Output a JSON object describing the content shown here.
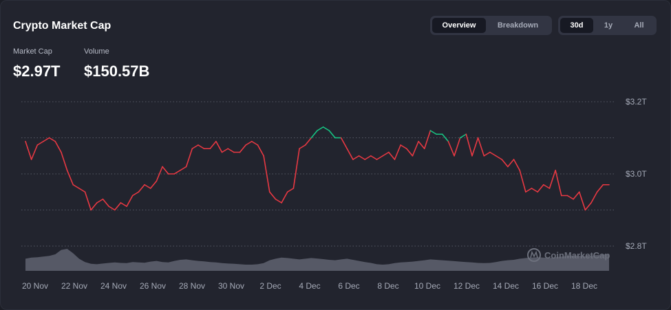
{
  "header": {
    "title": "Crypto Market Cap",
    "view_tabs": [
      {
        "label": "Overview",
        "active": true
      },
      {
        "label": "Breakdown",
        "active": false
      }
    ],
    "range_tabs": [
      {
        "label": "30d",
        "active": true
      },
      {
        "label": "1y",
        "active": false
      },
      {
        "label": "All",
        "active": false
      }
    ]
  },
  "metrics": {
    "market_cap_label": "Market Cap",
    "market_cap_value": "$2.97T",
    "volume_label": "Volume",
    "volume_value": "$150.57B"
  },
  "watermark": {
    "text": "CoinMarketCap",
    "icon": "coinmarketcap-logo-icon"
  },
  "colors": {
    "up": "#16c784",
    "down": "#ea3943",
    "volume": "#5f6370",
    "grid": "#555a66",
    "background": "#22242e"
  },
  "chart_data": {
    "type": "line",
    "x_tick_labels": [
      "20 Nov",
      "22 Nov",
      "24 Nov",
      "26 Nov",
      "28 Nov",
      "30 Nov",
      "2 Dec",
      "4 Dec",
      "6 Dec",
      "8 Dec",
      "10 Dec",
      "12 Dec",
      "14 Dec",
      "16 Dec",
      "18 Dec"
    ],
    "y_tick_labels": [
      "$3.2T",
      "$3.0T",
      "$2.8T"
    ],
    "ylim": [
      2.8,
      3.2
    ],
    "grid": "horizontal dotted",
    "baseline": 3.07,
    "series": [
      {
        "x": [
          "2024-11-19",
          "2024-11-20",
          "2024-11-20",
          "2024-11-20",
          "2024-11-20",
          "2024-11-20",
          "2024-11-20",
          "2024-11-21",
          "2024-11-21",
          "2024-11-21",
          "2024-11-21",
          "2024-11-22",
          "2024-11-22",
          "2024-11-22",
          "2024-11-22",
          "2024-11-22",
          "2024-11-23",
          "2024-11-23",
          "2024-11-23",
          "2024-11-24",
          "2024-11-24",
          "2024-11-24",
          "2024-11-25",
          "2024-11-25",
          "2024-11-25",
          "2024-11-26",
          "2024-11-26",
          "2024-11-26",
          "2024-11-27",
          "2024-11-27",
          "2024-11-27",
          "2024-11-28",
          "2024-11-28",
          "2024-11-28",
          "2024-11-29",
          "2024-11-29",
          "2024-11-29",
          "2024-11-30",
          "2024-11-30",
          "2024-11-30",
          "2024-12-01",
          "2024-12-01",
          "2024-12-01",
          "2024-12-02",
          "2024-12-02",
          "2024-12-02",
          "2024-12-03",
          "2024-12-03",
          "2024-12-03",
          "2024-12-03",
          "2024-12-04",
          "2024-12-04",
          "2024-12-04",
          "2024-12-05",
          "2024-12-05",
          "2024-12-05",
          "2024-12-06",
          "2024-12-06",
          "2024-12-06",
          "2024-12-07",
          "2024-12-07",
          "2024-12-07",
          "2024-12-08",
          "2024-12-08",
          "2024-12-08",
          "2024-12-09",
          "2024-12-09",
          "2024-12-09",
          "2024-12-10",
          "2024-12-10",
          "2024-12-10",
          "2024-12-11",
          "2024-12-11",
          "2024-12-11",
          "2024-12-12",
          "2024-12-12",
          "2024-12-12",
          "2024-12-13",
          "2024-12-13",
          "2024-12-14",
          "2024-12-14",
          "2024-12-14",
          "2024-12-15",
          "2024-12-15",
          "2024-12-15",
          "2024-12-16",
          "2024-12-16",
          "2024-12-16",
          "2024-12-17",
          "2024-12-17",
          "2024-12-17",
          "2024-12-18",
          "2024-12-18",
          "2024-12-18",
          "2024-12-19",
          "2024-12-19",
          "2024-12-19",
          "2024-12-20",
          "2024-12-20"
        ],
        "values": [
          3.09,
          3.04,
          3.08,
          3.09,
          3.1,
          3.09,
          3.06,
          3.01,
          2.97,
          2.96,
          2.95,
          2.9,
          2.92,
          2.93,
          2.91,
          2.9,
          2.92,
          2.91,
          2.94,
          2.95,
          2.97,
          2.96,
          2.98,
          3.02,
          3.0,
          3.0,
          3.01,
          3.02,
          3.07,
          3.08,
          3.07,
          3.07,
          3.09,
          3.06,
          3.07,
          3.06,
          3.06,
          3.08,
          3.09,
          3.08,
          3.05,
          2.95,
          2.93,
          2.92,
          2.95,
          2.96,
          3.07,
          3.08,
          3.1,
          3.12,
          3.13,
          3.12,
          3.1,
          3.1,
          3.07,
          3.04,
          3.05,
          3.04,
          3.05,
          3.04,
          3.05,
          3.06,
          3.04,
          3.08,
          3.07,
          3.05,
          3.09,
          3.07,
          3.12,
          3.11,
          3.11,
          3.09,
          3.05,
          3.1,
          3.11,
          3.05,
          3.1,
          3.05,
          3.06,
          3.05,
          3.04,
          3.02,
          3.04,
          3.01,
          2.95,
          2.96,
          2.95,
          2.97,
          2.96,
          3.01,
          2.94,
          2.94,
          2.93,
          2.95,
          2.9,
          2.92,
          2.95,
          2.97,
          2.97
        ]
      }
    ],
    "volume_relative": [
      0.55,
      0.6,
      0.62,
      0.65,
      0.68,
      0.75,
      0.95,
      1.0,
      0.8,
      0.55,
      0.4,
      0.32,
      0.3,
      0.33,
      0.36,
      0.38,
      0.36,
      0.35,
      0.4,
      0.38,
      0.37,
      0.42,
      0.45,
      0.4,
      0.38,
      0.45,
      0.5,
      0.52,
      0.48,
      0.45,
      0.43,
      0.4,
      0.38,
      0.35,
      0.33,
      0.32,
      0.3,
      0.28,
      0.28,
      0.3,
      0.35,
      0.48,
      0.55,
      0.6,
      0.58,
      0.55,
      0.52,
      0.55,
      0.58,
      0.56,
      0.53,
      0.5,
      0.48,
      0.52,
      0.55,
      0.5,
      0.45,
      0.4,
      0.36,
      0.3,
      0.28,
      0.3,
      0.35,
      0.38,
      0.4,
      0.42,
      0.45,
      0.48,
      0.52,
      0.5,
      0.48,
      0.46,
      0.44,
      0.42,
      0.4,
      0.38,
      0.36,
      0.35,
      0.36,
      0.4,
      0.45,
      0.48,
      0.5,
      0.55,
      0.58,
      0.6,
      0.62,
      0.6,
      0.58,
      0.62,
      0.65,
      0.68,
      0.7,
      0.68,
      0.66,
      0.7,
      0.72,
      0.74,
      0.75
    ]
  }
}
